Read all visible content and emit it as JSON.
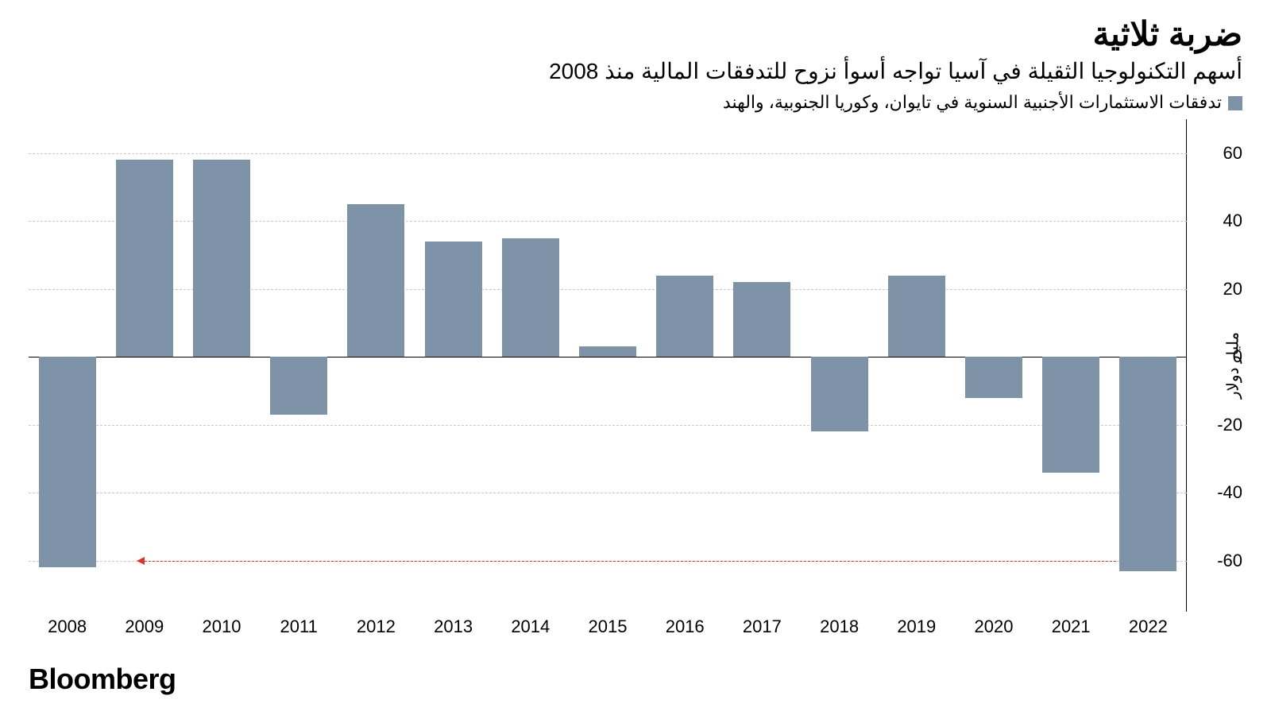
{
  "title": "ضربة ثلاثية",
  "subtitle": "أسهم التكنولوجيا الثقيلة في آسيا تواجه أسوأ نزوح للتدفقات المالية منذ 2008",
  "legend": {
    "label": "تدفقات الاستثمارات الأجنبية السنوية في تايوان، وكوريا الجنوبية، والهند",
    "swatch_color": "#7e92a8"
  },
  "chart": {
    "type": "bar",
    "categories": [
      "2008",
      "2009",
      "2010",
      "2011",
      "2012",
      "2013",
      "2014",
      "2015",
      "2016",
      "2017",
      "2018",
      "2019",
      "2020",
      "2021",
      "2022"
    ],
    "values": [
      -62,
      58,
      58,
      -17,
      45,
      34,
      35,
      3,
      24,
      22,
      -22,
      24,
      -12,
      -34,
      -63
    ],
    "bar_color": "#7e92a8",
    "bar_width_ratio": 0.74,
    "background_color": "#ffffff",
    "grid_color": "#c9c9c9",
    "axis_color": "#000000",
    "arrow_color": "#e03131",
    "y": {
      "min": -75,
      "max": 70,
      "ticks": [
        60,
        40,
        20,
        0,
        -20,
        -40,
        -60
      ],
      "label": "مليار دولار",
      "tick_fontsize": 22,
      "title_fontsize": 20
    },
    "x_fontsize": 22,
    "title_fontsize": 42,
    "subtitle_fontsize": 28,
    "legend_fontsize": 22,
    "annotation_arrow": {
      "y_value": -60,
      "from_category_index": 14,
      "to_category_index": 1
    }
  },
  "source": "Bloomberg",
  "source_fontsize": 36
}
